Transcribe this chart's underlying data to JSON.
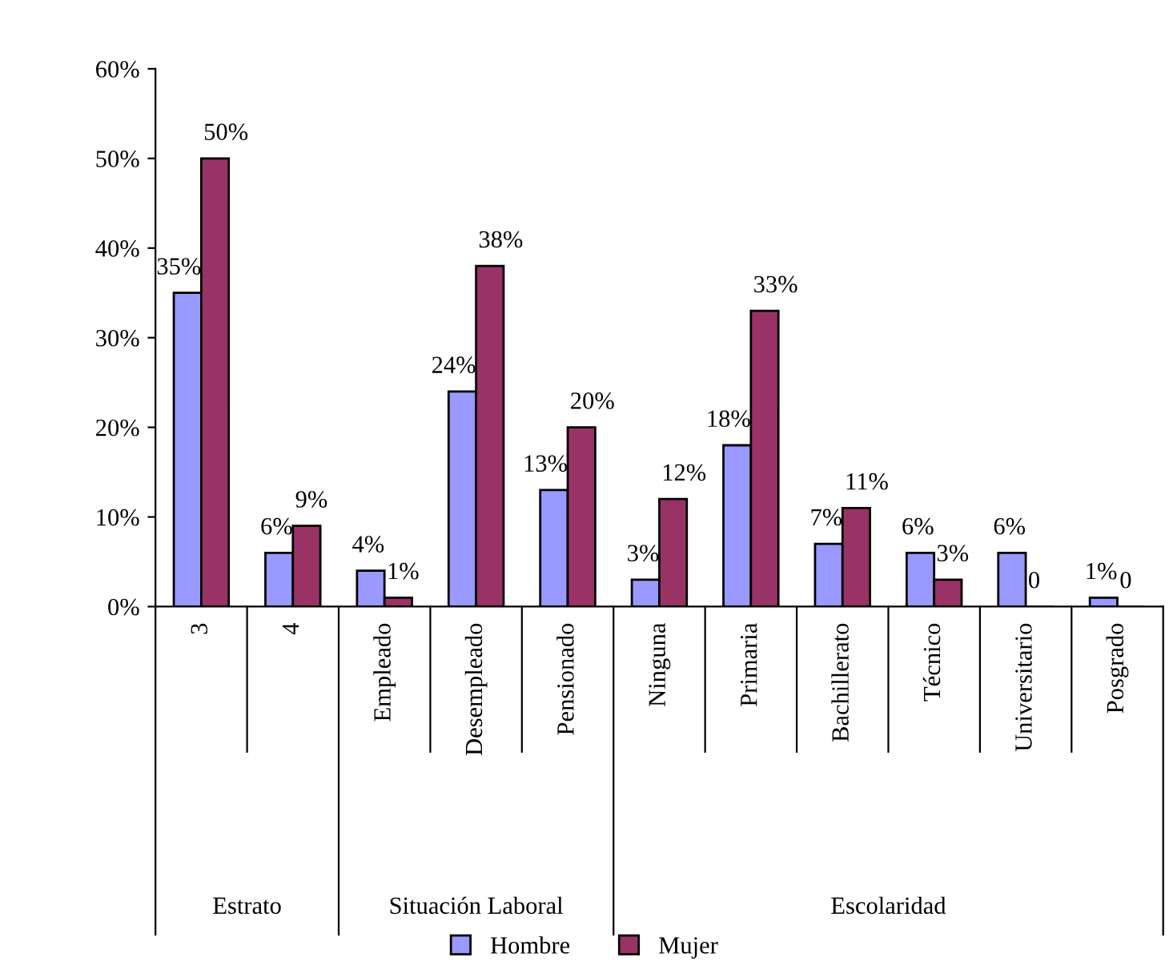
{
  "chart_data": {
    "type": "bar",
    "categories": [
      "3",
      "4",
      "Empleado",
      "Desempleado",
      "Pensionado",
      "Ninguna",
      "Primaria",
      "Bachillerato",
      "Técnico",
      "Universitario",
      "Posgrado"
    ],
    "series": [
      {
        "name": "Hombre",
        "color": "#9999ff",
        "values": [
          35,
          6,
          4,
          24,
          13,
          3,
          18,
          7,
          6,
          6,
          1
        ],
        "value_labels": [
          "35%",
          "6%",
          "4%",
          "24%",
          "13%",
          "3%",
          "18%",
          "7%",
          "6%",
          "6%",
          "1%"
        ]
      },
      {
        "name": "Mujer",
        "color": "#993366",
        "values": [
          50,
          9,
          1,
          38,
          20,
          12,
          33,
          11,
          3,
          0,
          0
        ],
        "value_labels": [
          "50%",
          "9%",
          "1%",
          "38%",
          "20%",
          "12%",
          "33%",
          "11%",
          "3%",
          "0",
          "0"
        ]
      }
    ],
    "annotations": [
      "Estrato",
      "Situación Laboral",
      "Escolaridad"
    ],
    "ylim": [
      0,
      60
    ],
    "yticks": [
      {
        "value": 0,
        "label": "0%"
      },
      {
        "value": 10,
        "label": "10%"
      },
      {
        "value": 20,
        "label": "20%"
      },
      {
        "value": 30,
        "label": "30%"
      },
      {
        "value": 40,
        "label": "40%"
      },
      {
        "value": 50,
        "label": "50%"
      },
      {
        "value": 60,
        "label": "60%"
      }
    ],
    "legend": "bottom",
    "grid": false
  }
}
